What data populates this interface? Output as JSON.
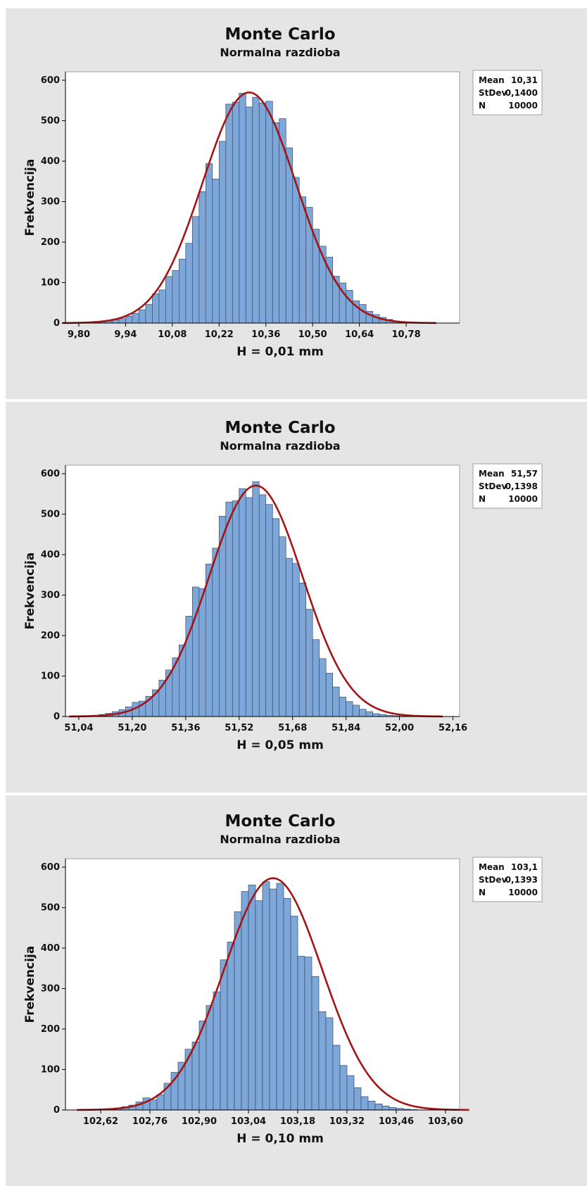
{
  "chart_data": [
    {
      "type": "bar",
      "title": "Monte Carlo",
      "subtitle": "Normalna razdioba",
      "xlabel": "H = 0,01 mm",
      "ylabel": "Frekvencija",
      "xlim": [
        9.76,
        10.94
      ],
      "ylim": [
        0,
        600
      ],
      "x_ticks": [
        "9,80",
        "9,94",
        "10,08",
        "10,22",
        "10,36",
        "10,50",
        "10,64",
        "10,78"
      ],
      "x_tick_values": [
        9.8,
        9.94,
        10.08,
        10.22,
        10.36,
        10.5,
        10.64,
        10.78
      ],
      "y_ticks": [
        "0",
        "100",
        "200",
        "300",
        "400",
        "500",
        "600"
      ],
      "y_tick_values": [
        0,
        100,
        200,
        300,
        400,
        500,
        600
      ],
      "bin_start": 9.84,
      "bin_width": 0.02,
      "values": [
        1,
        3,
        5,
        8,
        11,
        17,
        24,
        33,
        46,
        72,
        82,
        115,
        130,
        158,
        197,
        263,
        325,
        394,
        356,
        449,
        541,
        546,
        568,
        534,
        558,
        544,
        548,
        495,
        505,
        433,
        360,
        312,
        286,
        232,
        190,
        163,
        116,
        99,
        81,
        55,
        46,
        29,
        21,
        14,
        9,
        5,
        3,
        1
      ],
      "legend": [
        {
          "label": "Mean",
          "value": "10,31"
        },
        {
          "label": "StDev",
          "value": "0,1400"
        },
        {
          "label": "N",
          "value": "10000"
        }
      ],
      "fit": {
        "mean": 10.31,
        "stdev": 0.14,
        "n": 10000
      },
      "bar_color": "#7da7d9",
      "curve_color": "#a31515",
      "legend_position": "right"
    },
    {
      "type": "bar",
      "title": "Monte Carlo",
      "subtitle": "Normalna razdioba",
      "xlabel": "H = 0,05 mm",
      "ylabel": "Frekvencija",
      "xlim": [
        51.0,
        52.18
      ],
      "ylim": [
        0,
        600
      ],
      "x_ticks": [
        "51,04",
        "51,20",
        "51,36",
        "51,52",
        "51,68",
        "51,84",
        "52,00",
        "52,16"
      ],
      "x_tick_values": [
        51.04,
        51.2,
        51.36,
        51.52,
        51.68,
        51.84,
        52.0,
        52.16
      ],
      "y_ticks": [
        "0",
        "100",
        "200",
        "300",
        "400",
        "500",
        "600"
      ],
      "y_tick_values": [
        0,
        100,
        200,
        300,
        400,
        500,
        600
      ],
      "bin_start": 51.02,
      "bin_width": 0.02,
      "values": [
        1,
        1,
        1,
        3,
        5,
        8,
        12,
        17,
        24,
        35,
        38,
        50,
        66,
        90,
        115,
        145,
        177,
        248,
        320,
        316,
        377,
        416,
        495,
        530,
        533,
        563,
        541,
        580,
        548,
        524,
        489,
        444,
        391,
        378,
        330,
        265,
        190,
        143,
        107,
        73,
        48,
        37,
        28,
        18,
        12,
        7,
        5,
        3,
        2,
        1,
        1
      ],
      "legend": [
        {
          "label": "Mean",
          "value": "51,57"
        },
        {
          "label": "StDev",
          "value": "0,1398"
        },
        {
          "label": "N",
          "value": "10000"
        }
      ],
      "fit": {
        "mean": 51.57,
        "stdev": 0.1398,
        "n": 10000
      },
      "bar_color": "#7da7d9",
      "curve_color": "#a31515",
      "legend_position": "right"
    },
    {
      "type": "bar",
      "title": "Monte Carlo",
      "subtitle": "Normalna razdioba",
      "xlabel": "H = 0,10 mm",
      "ylabel": "Frekvencija",
      "xlim": [
        102.52,
        103.64
      ],
      "ylim": [
        0,
        600
      ],
      "x_ticks": [
        "102,62",
        "102,76",
        "102,90",
        "103,04",
        "103,18",
        "103,32",
        "103,46",
        "103,60"
      ],
      "x_tick_values": [
        102.62,
        102.76,
        102.9,
        103.04,
        103.18,
        103.32,
        103.46,
        103.6
      ],
      "y_ticks": [
        "0",
        "100",
        "200",
        "300",
        "400",
        "500",
        "600"
      ],
      "y_tick_values": [
        0,
        100,
        200,
        300,
        400,
        500,
        600
      ],
      "bin_start": 102.6,
      "bin_width": 0.02,
      "values": [
        1,
        2,
        3,
        5,
        8,
        12,
        20,
        30,
        25,
        38,
        66,
        93,
        118,
        150,
        168,
        220,
        258,
        292,
        371,
        415,
        490,
        540,
        556,
        517,
        564,
        546,
        560,
        523,
        479,
        380,
        378,
        330,
        243,
        228,
        160,
        110,
        85,
        55,
        33,
        22,
        15,
        10,
        6,
        4,
        2,
        1
      ],
      "legend": [
        {
          "label": "Mean",
          "value": "103,1"
        },
        {
          "label": "StDev",
          "value": "0,1393"
        },
        {
          "label": "N",
          "value": "10000"
        }
      ],
      "fit": {
        "mean": 103.11,
        "stdev": 0.1393,
        "n": 10000
      },
      "bar_color": "#7da7d9",
      "curve_color": "#a31515",
      "legend_position": "right"
    }
  ]
}
